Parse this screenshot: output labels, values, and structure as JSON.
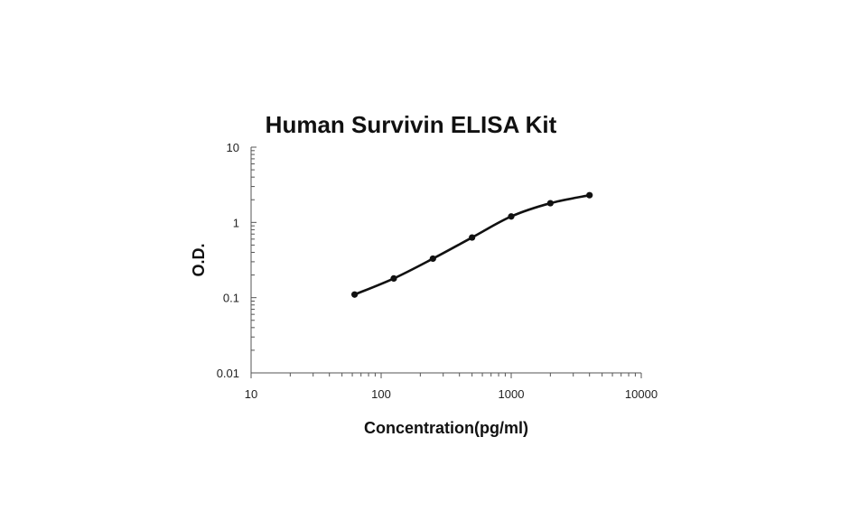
{
  "chart_data": {
    "type": "scatter",
    "title": "Human Survivin ELISA Kit",
    "xlabel": "Concentration(pg/ml)",
    "ylabel": "O.D.",
    "x_scale": "log",
    "y_scale": "log",
    "xlim": [
      10,
      10000
    ],
    "ylim": [
      0.01,
      10
    ],
    "x_ticks": [
      "10",
      "100",
      "1000",
      "10000"
    ],
    "y_ticks": [
      "10",
      "1",
      "0.1",
      "0.01"
    ],
    "grid": false,
    "legend": "none",
    "series": [
      {
        "x": [
          62.5,
          125,
          250,
          500,
          1000,
          2000,
          4000
        ],
        "y": [
          0.11,
          0.18,
          0.33,
          0.63,
          1.2,
          1.8,
          2.3
        ]
      }
    ],
    "fit_curve": true,
    "colors": {
      "points": "#111111",
      "curve": "#111111",
      "axes": "#555555"
    }
  }
}
